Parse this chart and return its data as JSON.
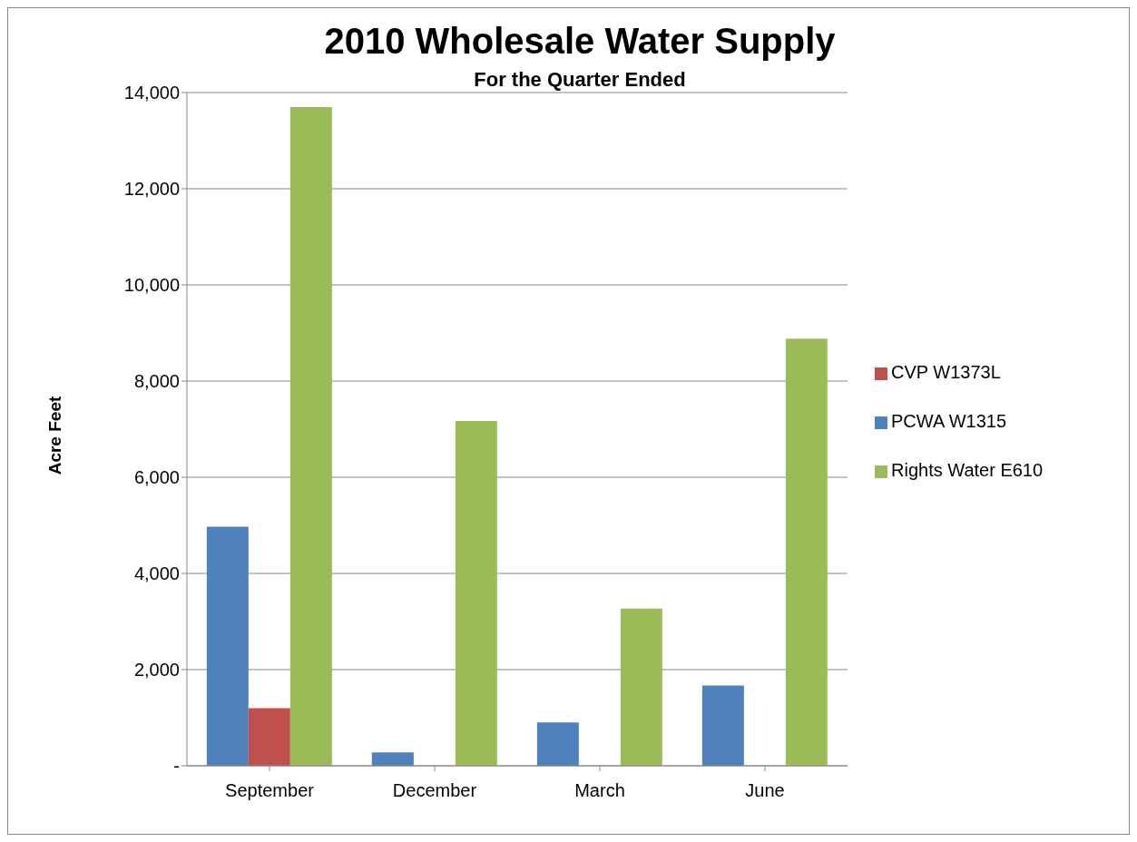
{
  "chart_data": {
    "type": "bar",
    "title": "2010 Wholesale Water Supply",
    "subtitle": "For the Quarter Ended",
    "ylabel": "Acre Feet",
    "categories": [
      "September",
      "December",
      "March",
      "June"
    ],
    "series": [
      {
        "name": "PCWA W1315",
        "color": "#4f81bd",
        "values": [
          4970,
          280,
          900,
          1670
        ]
      },
      {
        "name": "CVP W1373L",
        "color": "#c0504d",
        "values": [
          1200,
          0,
          0,
          0
        ]
      },
      {
        "name": "Rights Water E610",
        "color": "#9bbb59",
        "values": [
          13700,
          7170,
          3270,
          8880
        ]
      }
    ],
    "ylim": [
      0,
      14000
    ],
    "yticks": [
      {
        "value": 0,
        "label": "-"
      },
      {
        "value": 2000,
        "label": "2,000"
      },
      {
        "value": 4000,
        "label": "4,000"
      },
      {
        "value": 6000,
        "label": "6,000"
      },
      {
        "value": 8000,
        "label": "8,000"
      },
      {
        "value": 10000,
        "label": "10,000"
      },
      {
        "value": 12000,
        "label": "12,000"
      },
      {
        "value": 14000,
        "label": "14,000"
      }
    ],
    "grid": "y",
    "legend": "right"
  }
}
